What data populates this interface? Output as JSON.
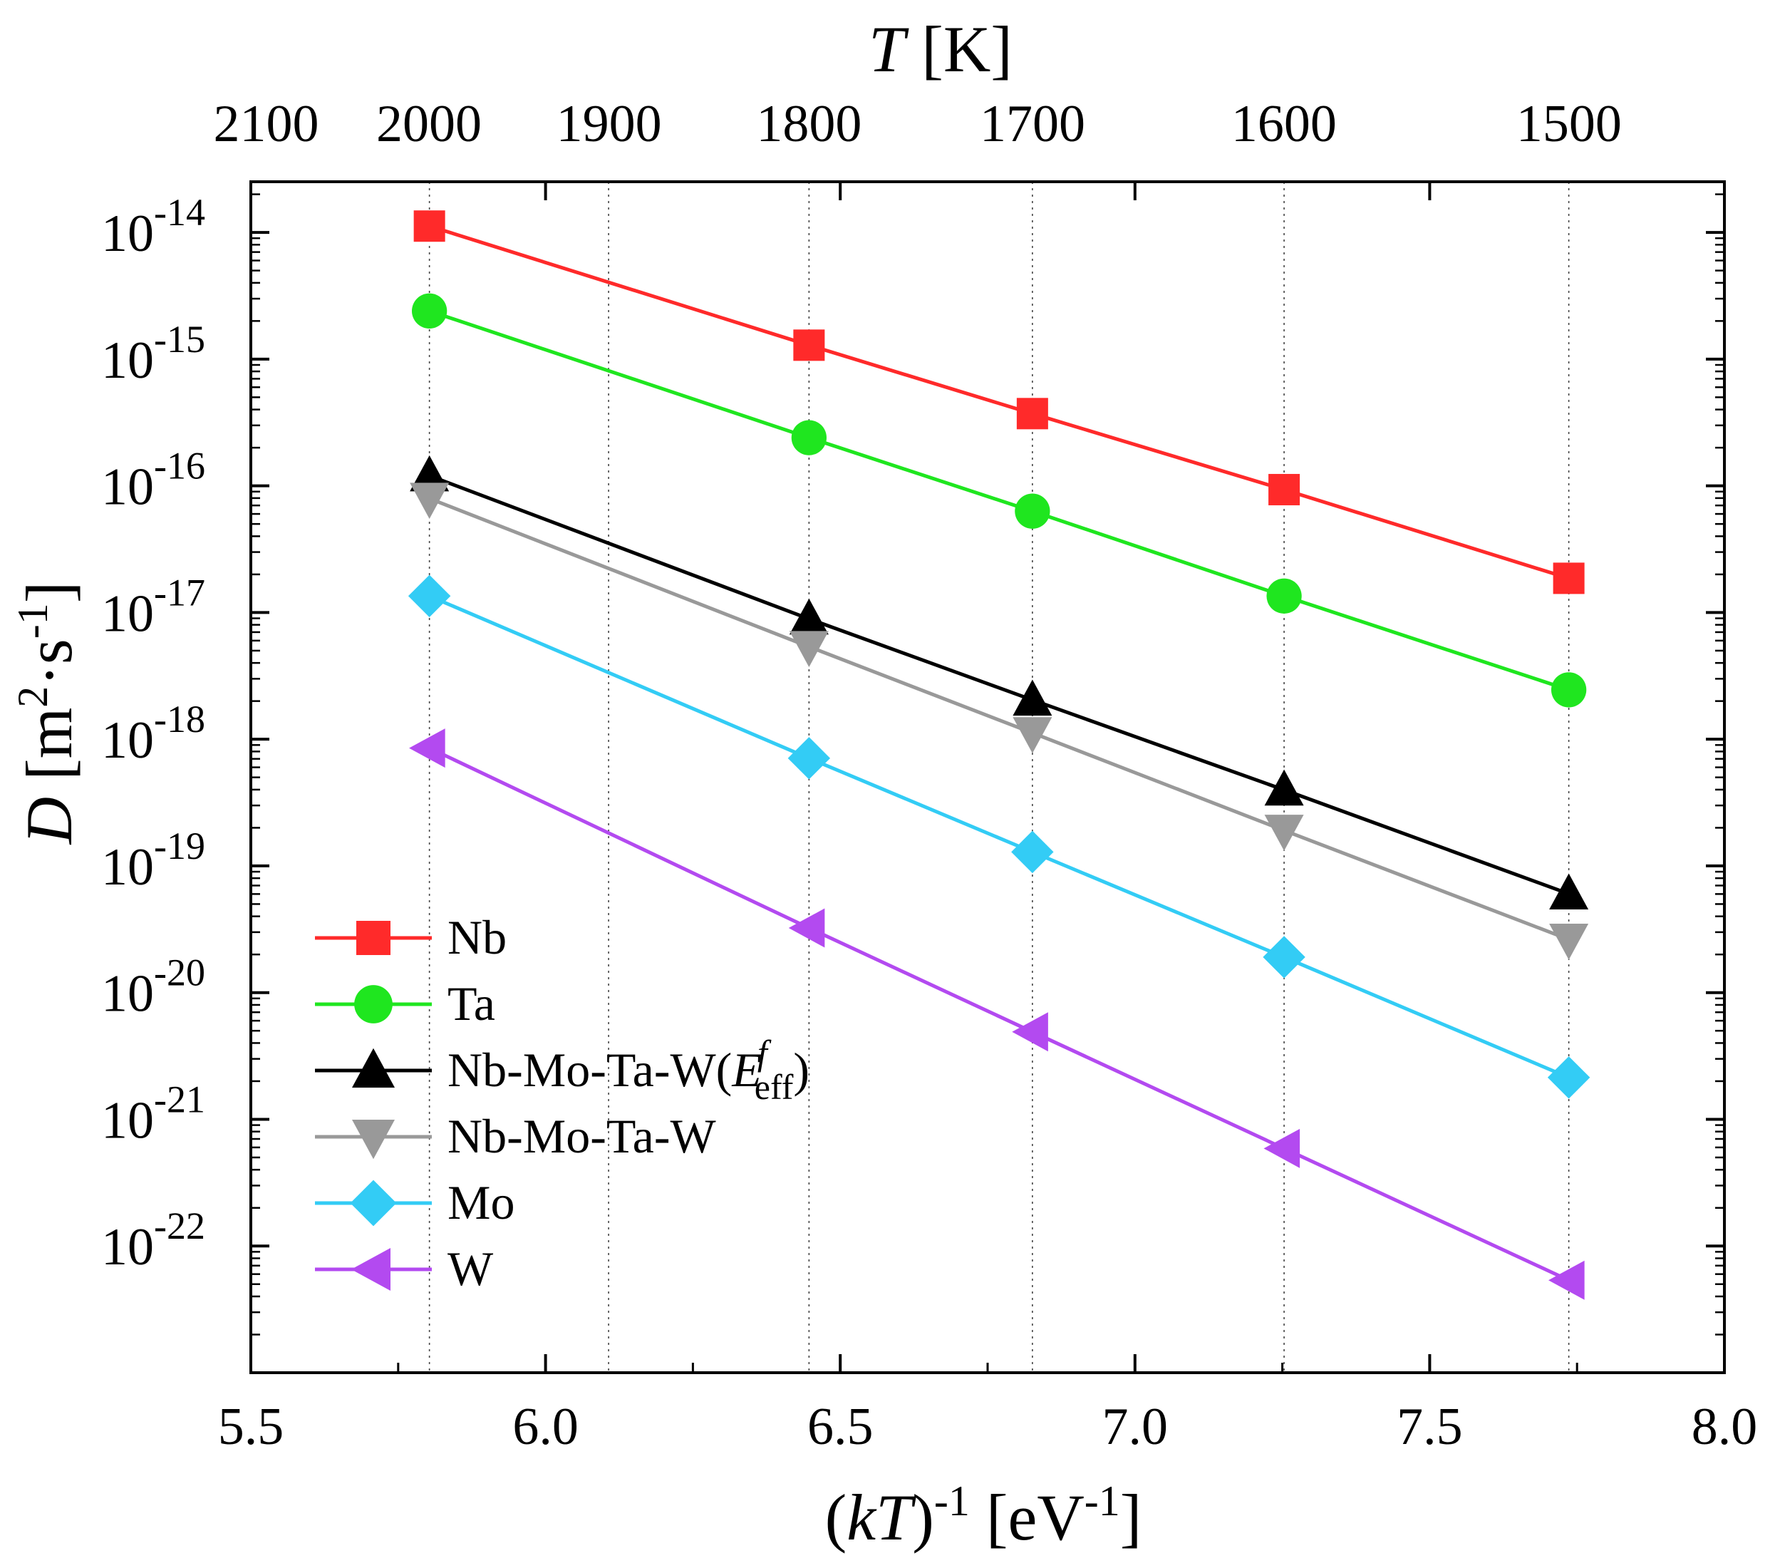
{
  "chart_data": {
    "type": "line",
    "yscale": "log",
    "xlim": [
      5.5,
      8.0
    ],
    "ylim_exp": [
      -23,
      -13.6
    ],
    "x_ticks": [
      "5.5",
      "6.0",
      "6.5",
      "7.0",
      "7.5",
      "8.0"
    ],
    "x_tick_values": [
      5.5,
      6.0,
      6.5,
      7.0,
      7.5,
      8.0
    ],
    "y_ticks_exp": [
      -14,
      -15,
      -16,
      -17,
      -18,
      -19,
      -20,
      -21,
      -22
    ],
    "y_tick_base": "10",
    "y_tick_sups": [
      "-14",
      "-15",
      "-16",
      "-17",
      "-18",
      "-19",
      "-20",
      "-21",
      "-22"
    ],
    "xlabel": {
      "open": "(",
      "var": "kT",
      "close": ")",
      "sup": "-1",
      "unit_open": " [eV",
      "unit_sup": "-1",
      "unit_close": "]"
    },
    "ylabel": {
      "var": "D",
      "unit_open": " [m",
      "sup1": "2",
      "mid": "·s",
      "sup2": "-1",
      "unit_close": "]"
    },
    "top_axis": {
      "title_var": "T",
      "title_unit": " [K]",
      "ticks": [
        "2100",
        "2000",
        "1900",
        "1800",
        "1700",
        "1600",
        "1500"
      ],
      "tick_values_K": [
        2100,
        2000,
        1900,
        1800,
        1700,
        1600,
        1500
      ]
    },
    "grid_x": [
      5.803,
      6.447,
      6.826,
      7.253,
      7.736
    ],
    "grid_top_extra_x": [
      6.107
    ],
    "series": [
      {
        "name": "Nb",
        "color": "#ff2a2a",
        "marker": "square",
        "x": [
          5.803,
          6.447,
          6.826,
          7.253,
          7.736
        ],
        "log10y": [
          -13.95,
          -14.89,
          -15.43,
          -16.03,
          -16.73
        ]
      },
      {
        "name": "Ta",
        "color": "#1fe61f",
        "marker": "circle",
        "x": [
          5.803,
          6.447,
          6.826,
          7.253,
          7.736
        ],
        "log10y": [
          -14.62,
          -15.62,
          -16.2,
          -16.87,
          -17.61
        ]
      },
      {
        "name": "Nb-Mo-Ta-W(E)",
        "color": "#000000",
        "marker": "triangle-up",
        "x": [
          5.803,
          6.447,
          6.826,
          7.253,
          7.736
        ],
        "log10y": [
          -15.92,
          -17.05,
          -17.69,
          -18.4,
          -19.22
        ]
      },
      {
        "name": "Nb-Mo-Ta-W",
        "color": "#999999",
        "marker": "triangle-down",
        "x": [
          5.803,
          6.447,
          6.826,
          7.253,
          7.736
        ],
        "log10y": [
          -16.1,
          -17.27,
          -17.95,
          -18.72,
          -19.58
        ]
      },
      {
        "name": "Mo",
        "color": "#33ccf5",
        "marker": "diamond",
        "x": [
          5.803,
          6.447,
          6.826,
          7.253,
          7.736
        ],
        "log10y": [
          -16.87,
          -18.15,
          -18.89,
          -19.72,
          -20.67
        ]
      },
      {
        "name": "W",
        "color": "#b34af0",
        "marker": "triangle-left",
        "x": [
          5.803,
          6.447,
          6.826,
          7.253,
          7.736
        ],
        "log10y": [
          -18.07,
          -19.49,
          -20.31,
          -21.23,
          -22.27
        ]
      }
    ],
    "legend": {
      "placement": "lower-left",
      "labels": [
        "Nb",
        "Ta",
        "Nb-Mo-Ta-W(",
        "Nb-Mo-Ta-W",
        "Mo",
        "W"
      ],
      "subscript_entry": {
        "prefix": "Nb-Mo-Ta-W(",
        "var": "E",
        "sup": "f",
        "sub": "eff",
        "suffix": ")"
      }
    }
  }
}
